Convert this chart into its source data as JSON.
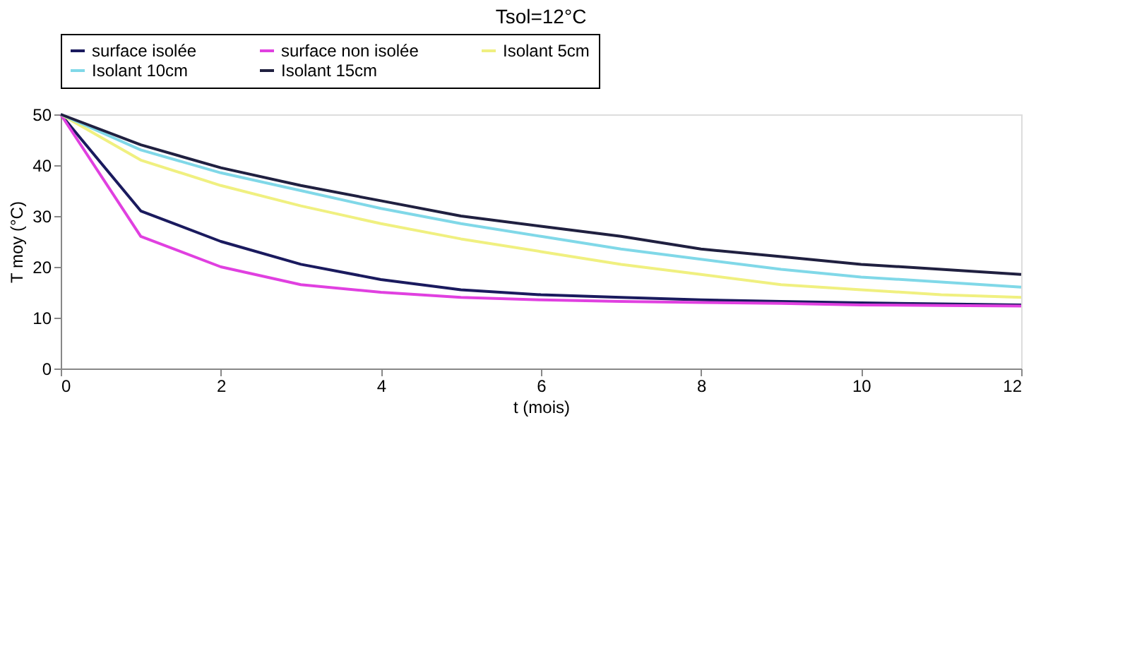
{
  "chart_data": {
    "type": "line",
    "title": "Tsol=12°C",
    "xlabel": "t (mois)",
    "ylabel": "T moy (°C)",
    "x": [
      0,
      1,
      2,
      3,
      4,
      5,
      6,
      7,
      8,
      9,
      10,
      11,
      12
    ],
    "series": [
      {
        "name": "surface isolée",
        "color": "#1a1a5e",
        "values": [
          50,
          31,
          25,
          20.5,
          17.5,
          15.5,
          14.5,
          14,
          13.5,
          13.2,
          12.9,
          12.7,
          12.5
        ]
      },
      {
        "name": "surface non isolée",
        "color": "#e040e0",
        "values": [
          50,
          26,
          20,
          16.5,
          15,
          14,
          13.5,
          13.2,
          13,
          12.8,
          12.5,
          12.4,
          12.3
        ]
      },
      {
        "name": "Isolant 5cm",
        "color": "#f0f080",
        "values": [
          50,
          41,
          36,
          32,
          28.5,
          25.5,
          23,
          20.5,
          18.5,
          16.5,
          15.5,
          14.5,
          14
        ]
      },
      {
        "name": "Isolant 10cm",
        "color": "#80d8e8",
        "values": [
          50,
          43,
          38.5,
          35,
          31.5,
          28.5,
          26,
          23.5,
          21.5,
          19.5,
          18,
          17,
          16
        ]
      },
      {
        "name": "Isolant 15cm",
        "color": "#202040",
        "values": [
          50,
          44,
          39.5,
          36,
          33,
          30,
          28,
          26,
          23.5,
          22,
          20.5,
          19.5,
          18.5
        ]
      }
    ],
    "xlim": [
      0,
      12
    ],
    "xticks": [
      0,
      2,
      4,
      6,
      8,
      10,
      12
    ],
    "ylim": [
      0,
      50
    ],
    "yticks": [
      0,
      10,
      20,
      30,
      40,
      50
    ],
    "grid": false,
    "legend": "top",
    "marker": "none",
    "line_style": "solid"
  }
}
